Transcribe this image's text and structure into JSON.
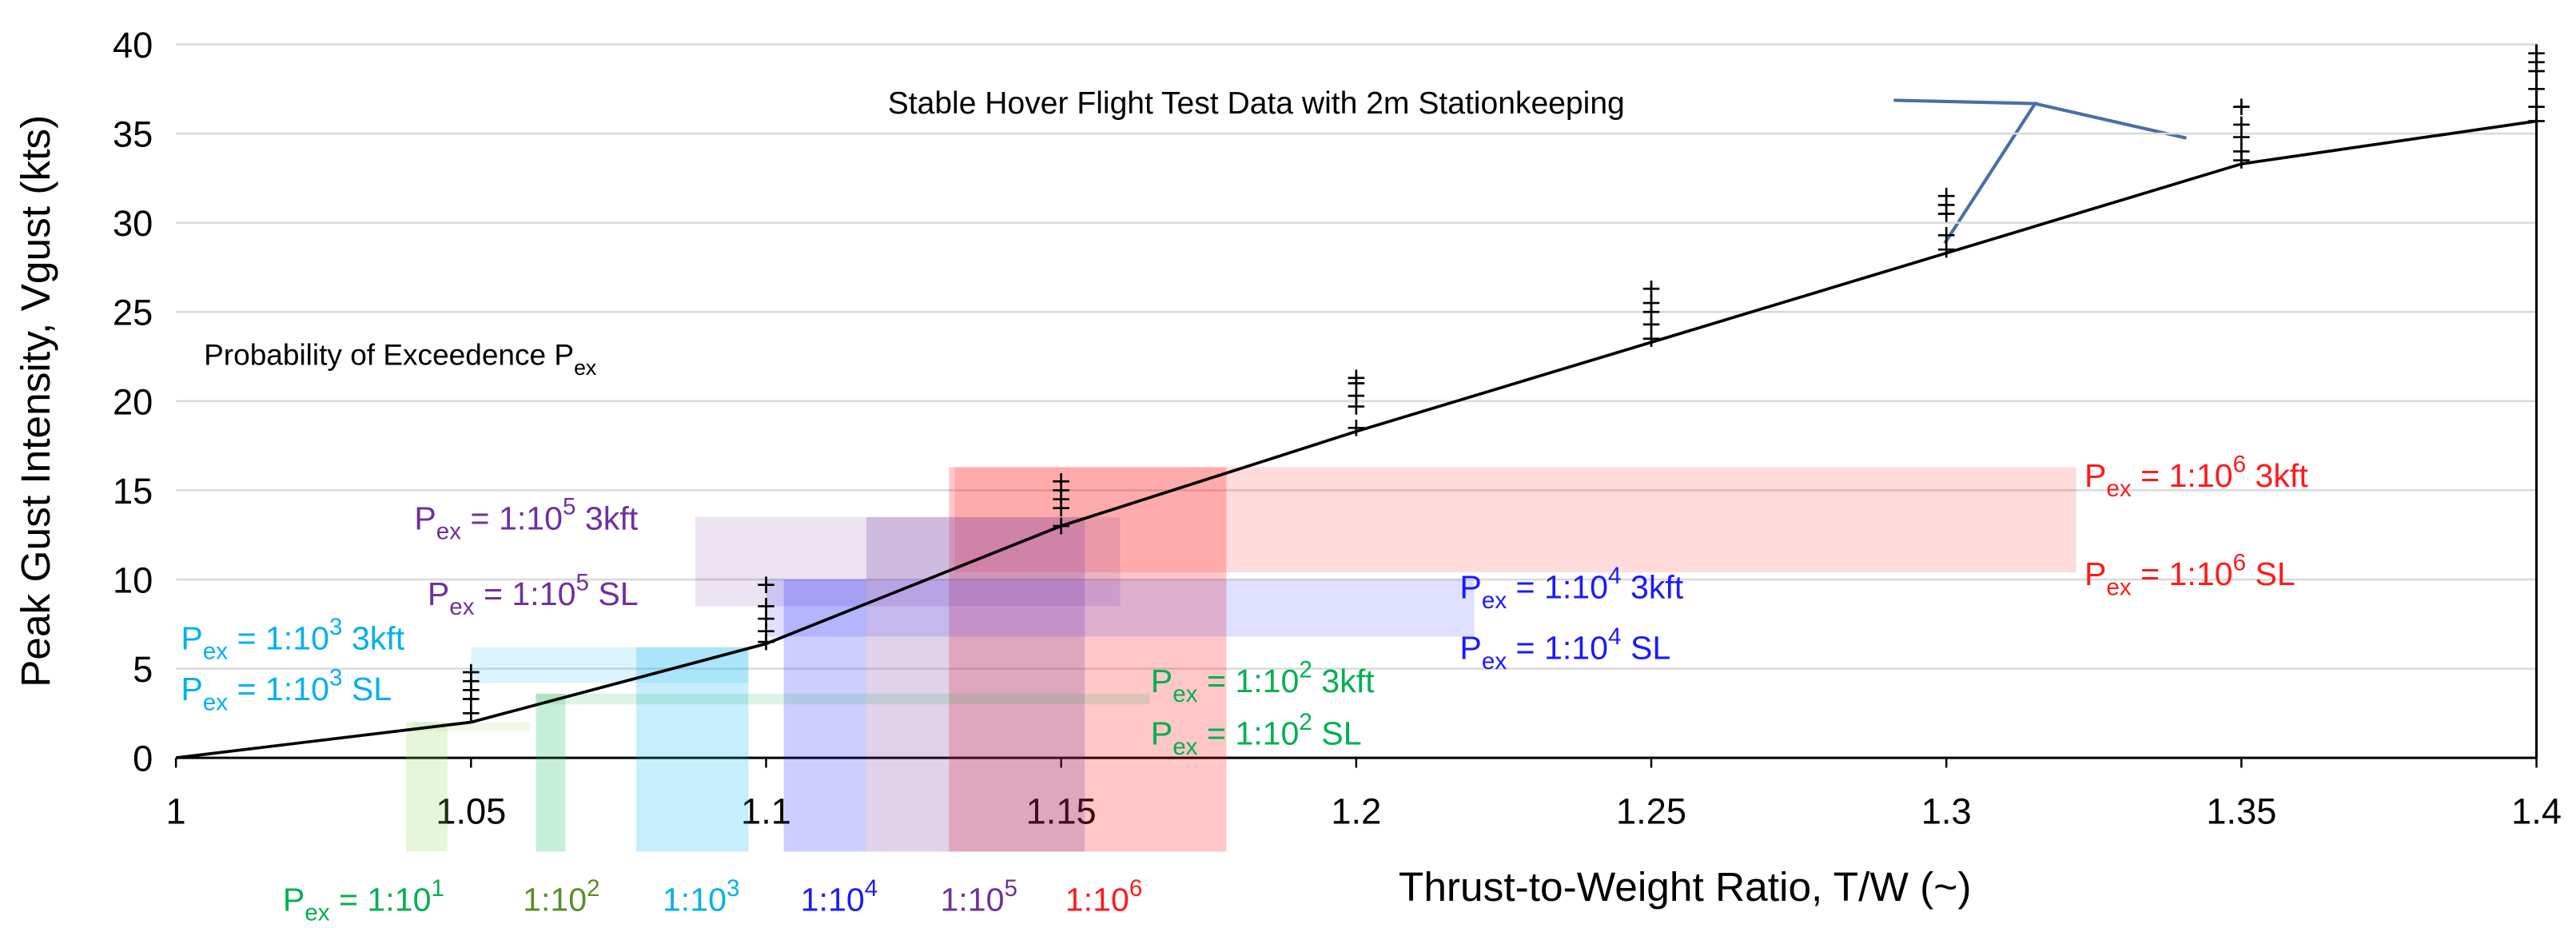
{
  "chart_data": {
    "type": "line",
    "xlabel": "Thrust-to-Weight Ratio, T/W (~)",
    "ylabel": "Peak Gust Intensity, Vgust (kts)",
    "xlim": [
      1,
      1.4
    ],
    "ylim": [
      0,
      40
    ],
    "xticks": [
      1,
      1.05,
      1.1,
      1.15,
      1.2,
      1.25,
      1.3,
      1.35,
      1.4
    ],
    "yticks": [
      0,
      5,
      10,
      15,
      20,
      25,
      30,
      35,
      40
    ],
    "grid": true,
    "line": {
      "color": "#000000",
      "x": [
        1,
        1.05,
        1.1,
        1.15,
        1.2,
        1.25,
        1.3,
        1.35,
        1.4
      ],
      "values": [
        0,
        2,
        6.4,
        13,
        18.3,
        23.3,
        28.3,
        33.3,
        35.7
      ]
    },
    "points": {
      "color": "#000000",
      "x": [
        1.05,
        1.05,
        1.05,
        1.05,
        1.05,
        1.1,
        1.1,
        1.1,
        1.1,
        1.1,
        1.15,
        1.15,
        1.15,
        1.15,
        1.15,
        1.2,
        1.2,
        1.2,
        1.2,
        1.2,
        1.25,
        1.25,
        1.25,
        1.25,
        1.25,
        1.3,
        1.3,
        1.3,
        1.3,
        1.3,
        1.35,
        1.35,
        1.35,
        1.35,
        1.35,
        1.4,
        1.4,
        1.4,
        1.4,
        1.4,
        1.4
      ],
      "values": [
        2.5,
        3.3,
        3.8,
        4.3,
        4.8,
        6.5,
        7.1,
        7.8,
        8.5,
        9.7,
        13,
        14,
        14.5,
        15,
        15.5,
        18.5,
        19.7,
        20.3,
        21,
        21.3,
        23.5,
        24.3,
        25,
        25.5,
        26.3,
        28.5,
        29.3,
        30.5,
        31,
        31.5,
        33.5,
        34,
        34.8,
        35.5,
        36.5,
        35.7,
        36.5,
        37.5,
        38.5,
        39,
        39.5
      ]
    },
    "regions": [
      {
        "color": "#ff0000",
        "x_range": [
          1.132,
          1.322
        ],
        "y_range": [
          10.4,
          16.3
        ],
        "bar_x": [
          1.131,
          1.178
        ]
      },
      {
        "color": "#7030a0",
        "x_range": [
          1.088,
          1.16
        ],
        "y_range": [
          8.5,
          13.5
        ],
        "bar_x": [
          1.117,
          1.154
        ]
      },
      {
        "color": "#1a1aff",
        "x_range": [
          1.1,
          1.22
        ],
        "y_range": [
          6.8,
          10
        ],
        "bar_x": [
          1.103,
          1.117
        ]
      },
      {
        "color": "#00b0f0",
        "x_range": [
          1.05,
          1.097
        ],
        "y_range": [
          4.2,
          6.2
        ],
        "bar_x": [
          1.078,
          1.097
        ]
      },
      {
        "color": "#00b050",
        "x_range": [
          1.061,
          1.165
        ],
        "y_range": [
          3,
          3.6
        ],
        "bar_x": [
          1.061,
          1.066
        ]
      },
      {
        "color": "#92d050",
        "x_range": [
          1.04,
          1.06
        ],
        "y_range": [
          1.5,
          2
        ],
        "bar_x": [
          1.039,
          1.046
        ]
      }
    ],
    "annotations": [
      {
        "text": [
          "Probability of Exceedence P",
          {
            "sub": "ex"
          }
        ]
      },
      {
        "text": [
          "Stable Hover Flight Test Data with 2m Stationkeeping"
        ]
      }
    ],
    "labels": [
      {
        "color": "#ff1a1a",
        "text": [
          "P",
          {
            "sub": "ex"
          },
          " = 1:10",
          {
            "sup": "6"
          },
          " 3kft"
        ]
      },
      {
        "color": "#ff1a1a",
        "text": [
          "P",
          {
            "sub": "ex"
          },
          " = 1:10",
          {
            "sup": "6"
          },
          " SL"
        ]
      },
      {
        "color": "#7030a0",
        "text": [
          "P",
          {
            "sub": "ex"
          },
          " = 1:10",
          {
            "sup": "5"
          },
          " 3kft"
        ]
      },
      {
        "color": "#7030a0",
        "text": [
          "P",
          {
            "sub": "ex"
          },
          " = 1:10",
          {
            "sup": "5"
          },
          " SL"
        ]
      },
      {
        "color": "#1a1aff",
        "text": [
          "P",
          {
            "sub": "ex"
          },
          " = 1:10",
          {
            "sup": "4"
          },
          " 3kft"
        ]
      },
      {
        "color": "#1a1aff",
        "text": [
          "P",
          {
            "sub": "ex"
          },
          " = 1:10",
          {
            "sup": "4"
          },
          " SL"
        ]
      },
      {
        "color": "#00b0f0",
        "text": [
          "P",
          {
            "sub": "ex"
          },
          " = 1:10",
          {
            "sup": "3"
          },
          " 3kft"
        ]
      },
      {
        "color": "#00b0f0",
        "text": [
          "P",
          {
            "sub": "ex"
          },
          " = 1:10",
          {
            "sup": "3"
          },
          " SL"
        ]
      },
      {
        "color": "#00b050",
        "text": [
          "P",
          {
            "sub": "ex"
          },
          " = 1:10",
          {
            "sup": "2"
          },
          " 3kft"
        ]
      },
      {
        "color": "#00b050",
        "text": [
          "P",
          {
            "sub": "ex"
          },
          " = 1:10",
          {
            "sup": "2"
          },
          " SL"
        ]
      },
      {
        "color": "#00b050",
        "text": [
          "P",
          {
            "sub": "ex"
          },
          " = 1:10",
          {
            "sup": "1"
          }
        ]
      },
      {
        "color": "#5b8c2a",
        "text": [
          "1:10",
          {
            "sup": "2"
          }
        ]
      },
      {
        "color": "#00b0f0",
        "text": [
          "1:10",
          {
            "sup": "3"
          }
        ]
      },
      {
        "color": "#1a1aff",
        "text": [
          "1:10",
          {
            "sup": "4"
          }
        ]
      },
      {
        "color": "#7030a0",
        "text": [
          "1:10",
          {
            "sup": "5"
          }
        ]
      },
      {
        "color": "#ff1a1a",
        "text": [
          "1:10",
          {
            "sup": "6"
          }
        ]
      }
    ]
  }
}
